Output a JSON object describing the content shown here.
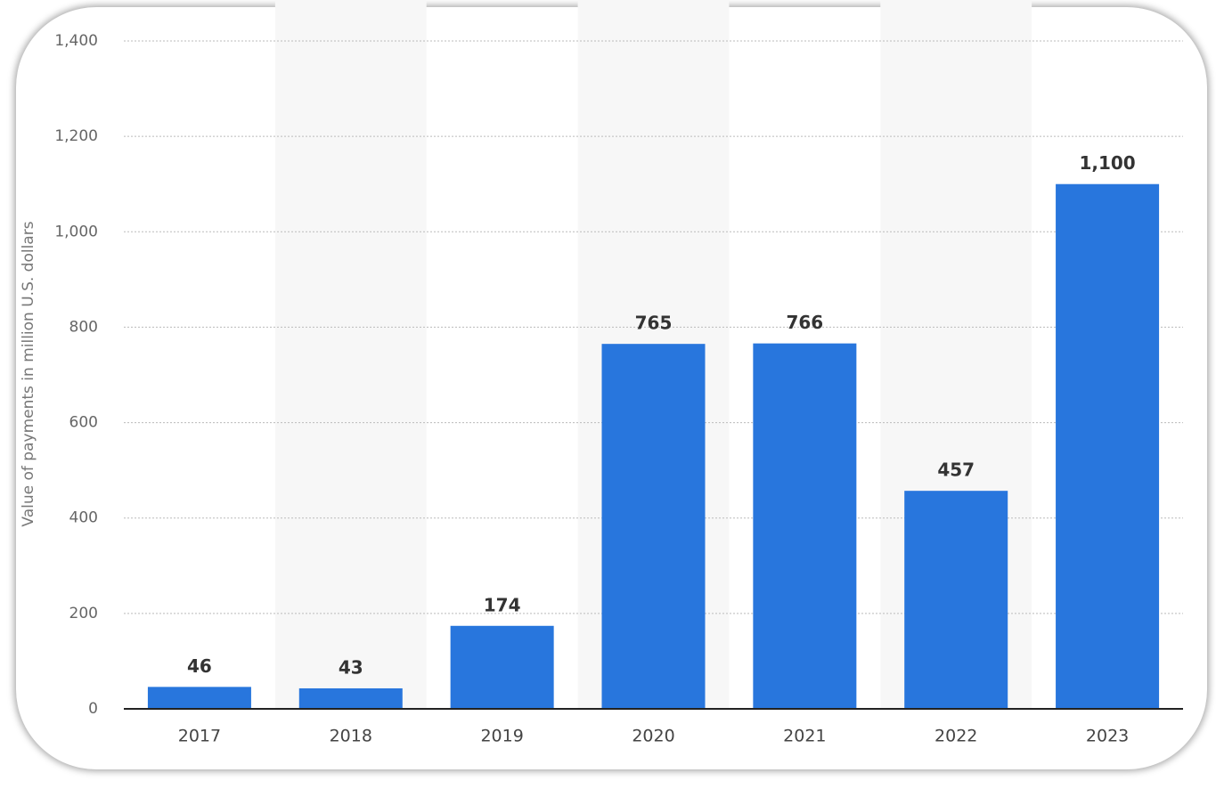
{
  "chart_data": {
    "type": "bar",
    "y_label": "Value of payments in million U.S. dollars",
    "categories": [
      "2017",
      "2018",
      "2019",
      "2020",
      "2021",
      "2022",
      "2023"
    ],
    "values": [
      46,
      43,
      174,
      765,
      766,
      457,
      1100
    ],
    "value_labels": [
      "46",
      "43",
      "174",
      "765",
      "766",
      "457",
      "1,100"
    ],
    "color": "#2876dd",
    "ylim": [
      0,
      1400
    ],
    "yticks": [
      0,
      200,
      400,
      600,
      800,
      {
        "value": 1000,
        "label": "1,000"
      },
      {
        "value": 1200,
        "label": "1,200"
      },
      {
        "value": 1400,
        "label": "1,400"
      }
    ],
    "grid": true
  }
}
